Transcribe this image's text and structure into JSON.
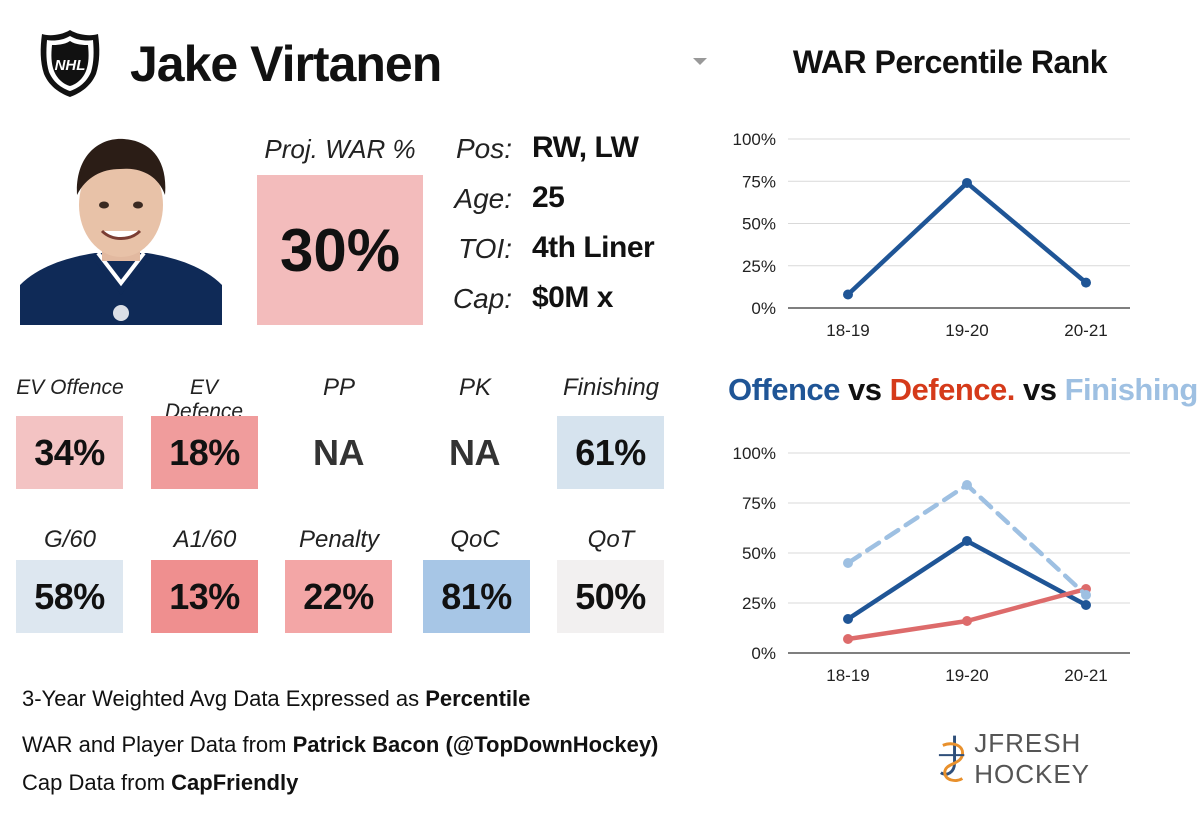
{
  "header": {
    "logo_text": "NHL",
    "player_name": "Jake Virtanen",
    "chart_title": "WAR Percentile Rank"
  },
  "proj_war": {
    "label": "Proj. WAR %",
    "value": "30%"
  },
  "info": {
    "pos_label": "Pos:",
    "pos_value": "RW, LW",
    "age_label": "Age:",
    "age_value": "25",
    "toi_label": "TOI:",
    "toi_value": "4th Liner",
    "cap_label": "Cap:",
    "cap_value": "$0M x"
  },
  "stats": [
    {
      "label": "EV Offence",
      "value": "34%",
      "color": "#f3c3c3"
    },
    {
      "label": "EV Defence",
      "value": "18%",
      "color": "#f09c9c"
    },
    {
      "label": "PP",
      "value": "NA",
      "color": "#ffffff"
    },
    {
      "label": "PK",
      "value": "NA",
      "color": "#ffffff"
    },
    {
      "label": "Finishing",
      "value": "61%",
      "color": "#d6e3ee"
    },
    {
      "label": "G/60",
      "value": "58%",
      "color": "#dde7f0"
    },
    {
      "label": "A1/60",
      "value": "13%",
      "color": "#ef8f8f"
    },
    {
      "label": "Penalty",
      "value": "22%",
      "color": "#f3a6a6"
    },
    {
      "label": "QoC",
      "value": "81%",
      "color": "#a7c6e6"
    },
    {
      "label": "QoT",
      "value": "50%",
      "color": "#f2f0f0"
    }
  ],
  "footer": {
    "line1_prefix": "3-Year Weighted Avg Data Expressed as ",
    "line1_bold": "Percentile",
    "line2_prefix": "WAR and Player Data from ",
    "line2_bold": "Patrick Bacon (@TopDownHockey)",
    "line3_prefix": "Cap Data from ",
    "line3_bold": "CapFriendly"
  },
  "chart2_title": {
    "offence": "Offence",
    "vs1": " vs ",
    "defence": "Defence.",
    "vs2": " vs ",
    "finishing": "Finishing"
  },
  "brand": {
    "name": "JFRESH HOCKEY"
  },
  "colors": {
    "offence": "#1f5596",
    "defence": "#dd6b6b",
    "defence_title": "#d53a1a",
    "finishing": "#9ec0e2",
    "war_line": "#1f5596"
  },
  "chart_data": [
    {
      "type": "line",
      "title": "WAR Percentile Rank",
      "categories": [
        "18-19",
        "19-20",
        "20-21"
      ],
      "ytick_labels": [
        "0%",
        "25%",
        "50%",
        "75%",
        "100%"
      ],
      "ylim": [
        0,
        100
      ],
      "series": [
        {
          "name": "WAR",
          "values": [
            8,
            74,
            15
          ]
        }
      ]
    },
    {
      "type": "line",
      "title": "Offence vs Defence. vs Finishing",
      "categories": [
        "18-19",
        "19-20",
        "20-21"
      ],
      "ytick_labels": [
        "0%",
        "25%",
        "50%",
        "75%",
        "100%"
      ],
      "ylim": [
        0,
        100
      ],
      "series": [
        {
          "name": "Offence",
          "values": [
            17,
            56,
            24
          ]
        },
        {
          "name": "Defence",
          "values": [
            7,
            16,
            32
          ]
        },
        {
          "name": "Finishing",
          "values": [
            45,
            84,
            29
          ]
        }
      ]
    }
  ]
}
